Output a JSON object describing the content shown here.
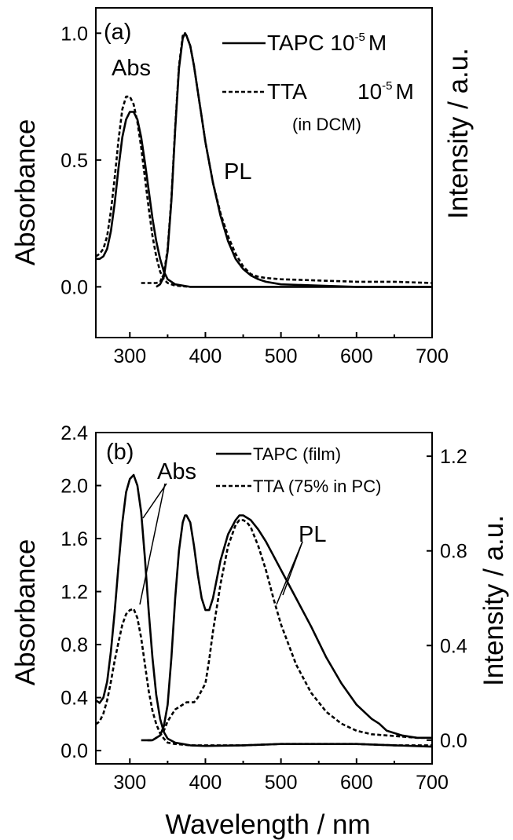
{
  "chart_data": [
    {
      "panel": "(a)",
      "type": "line",
      "xlabel": "",
      "ylabel": "Absorbance",
      "ylabel_right": "Intensity / a.u.",
      "xlim": [
        255,
        700
      ],
      "ylim": [
        -0.2,
        1.1
      ],
      "xticks": [
        "300",
        "400",
        "500",
        "600",
        "700"
      ],
      "yticks": [
        "0.0",
        "0.5",
        "1.0"
      ],
      "annotations": [
        "Abs",
        "PL"
      ],
      "legend": {
        "placement": "top-right",
        "entries": [
          {
            "name": "TAPC 10",
            "sup": "-5",
            "unit": "M",
            "style": "solid"
          },
          {
            "name": "TTA",
            "conc": "10",
            "sup": "-5",
            "unit": "M",
            "style": "dashed"
          }
        ],
        "note": "(in DCM)"
      },
      "series": [
        {
          "name": "TAPC Abs",
          "style": "solid",
          "x": [
            255,
            260,
            265,
            270,
            275,
            280,
            285,
            290,
            295,
            300,
            305,
            310,
            315,
            320,
            325,
            330,
            335,
            340,
            345,
            350,
            360,
            380,
            400,
            450,
            500,
            600,
            700
          ],
          "y": [
            0.11,
            0.11,
            0.12,
            0.15,
            0.22,
            0.33,
            0.47,
            0.59,
            0.66,
            0.69,
            0.69,
            0.66,
            0.59,
            0.49,
            0.38,
            0.27,
            0.18,
            0.11,
            0.06,
            0.03,
            0.01,
            0.0,
            0.0,
            0.0,
            0.0,
            0.0,
            0.0
          ]
        },
        {
          "name": "TTA Abs",
          "style": "dashed",
          "x": [
            255,
            260,
            265,
            270,
            275,
            280,
            285,
            290,
            295,
            300,
            305,
            310,
            315,
            320,
            325,
            330,
            335,
            340,
            345,
            350,
            360,
            380
          ],
          "y": [
            0.12,
            0.13,
            0.15,
            0.2,
            0.3,
            0.43,
            0.58,
            0.7,
            0.75,
            0.75,
            0.72,
            0.65,
            0.55,
            0.43,
            0.31,
            0.2,
            0.12,
            0.06,
            0.03,
            0.015,
            0.005,
            0.0
          ]
        },
        {
          "name": "TAPC PL",
          "style": "solid",
          "x": [
            335,
            340,
            345,
            350,
            355,
            360,
            365,
            370,
            373,
            375,
            380,
            385,
            390,
            395,
            400,
            410,
            420,
            430,
            440,
            450,
            460,
            470,
            480,
            500,
            550,
            600,
            650,
            700
          ],
          "y": [
            0.0,
            0.01,
            0.04,
            0.14,
            0.34,
            0.62,
            0.86,
            0.98,
            1.0,
            0.99,
            0.95,
            0.87,
            0.77,
            0.67,
            0.57,
            0.41,
            0.28,
            0.18,
            0.11,
            0.07,
            0.045,
            0.03,
            0.02,
            0.01,
            0.005,
            0.0,
            0.0,
            0.0
          ]
        },
        {
          "name": "TTA PL",
          "style": "dashed",
          "x": [
            315,
            325,
            335,
            340,
            345,
            350,
            355,
            360,
            365,
            370,
            373,
            375,
            380,
            385,
            390,
            395,
            400,
            410,
            420,
            430,
            440,
            450,
            460,
            470,
            480,
            500,
            550,
            600,
            650,
            700
          ],
          "y": [
            0.015,
            0.015,
            0.015,
            0.02,
            0.05,
            0.15,
            0.35,
            0.63,
            0.87,
            0.99,
            1.0,
            0.99,
            0.95,
            0.87,
            0.77,
            0.67,
            0.57,
            0.41,
            0.29,
            0.2,
            0.13,
            0.08,
            0.05,
            0.04,
            0.035,
            0.03,
            0.025,
            0.02,
            0.02,
            0.015
          ]
        }
      ]
    },
    {
      "panel": "(b)",
      "type": "line",
      "xlabel": "Wavelength / nm",
      "ylabel": "Absorbance",
      "ylabel_right": "Intensity / a.u.",
      "xlim": [
        255,
        700
      ],
      "ylim": [
        -0.1,
        2.4
      ],
      "ylim_right": [
        -0.1,
        1.3
      ],
      "xticks": [
        "300",
        "400",
        "500",
        "600",
        "700"
      ],
      "yticks": [
        "0.0",
        "0.4",
        "0.8",
        "1.2",
        "1.6",
        "2.0",
        "2.4"
      ],
      "yticks_right": [
        "0.0",
        "0.4",
        "0.8",
        "1.2"
      ],
      "annotations": [
        "Abs",
        "PL"
      ],
      "legend": {
        "placement": "top-right",
        "entries": [
          {
            "name": "TAPC (film)",
            "style": "solid"
          },
          {
            "name": "TTA (75% in PC)",
            "style": "dashed"
          }
        ]
      },
      "series": [
        {
          "name": "TAPC Abs (film)",
          "style": "solid",
          "x": [
            255,
            260,
            265,
            270,
            275,
            280,
            285,
            290,
            295,
            300,
            305,
            310,
            315,
            320,
            325,
            330,
            335,
            340,
            345,
            350,
            360,
            370,
            380,
            400,
            450,
            500,
            550,
            600,
            650,
            700
          ],
          "y": [
            0.38,
            0.36,
            0.4,
            0.52,
            0.75,
            1.05,
            1.4,
            1.72,
            1.95,
            2.05,
            2.08,
            2.0,
            1.8,
            1.45,
            1.05,
            0.7,
            0.42,
            0.24,
            0.14,
            0.09,
            0.06,
            0.05,
            0.04,
            0.035,
            0.04,
            0.05,
            0.05,
            0.05,
            0.04,
            0.03
          ]
        },
        {
          "name": "TTA Abs (75% in PC)",
          "style": "dashed",
          "x": [
            255,
            260,
            265,
            270,
            275,
            280,
            285,
            290,
            295,
            300,
            305,
            310,
            315,
            320,
            325,
            330,
            335,
            340,
            345,
            350,
            360,
            380,
            400,
            450,
            500,
            550,
            600,
            650,
            700
          ],
          "y": [
            0.2,
            0.22,
            0.28,
            0.38,
            0.52,
            0.68,
            0.82,
            0.95,
            1.03,
            1.06,
            1.07,
            1.0,
            0.85,
            0.65,
            0.45,
            0.3,
            0.2,
            0.13,
            0.09,
            0.06,
            0.05,
            0.04,
            0.04,
            0.04,
            0.05,
            0.05,
            0.05,
            0.04,
            0.04
          ]
        },
        {
          "name": "TAPC PL (film)",
          "style": "solid",
          "x": [
            320,
            330,
            340,
            345,
            350,
            355,
            360,
            365,
            370,
            373,
            375,
            380,
            385,
            390,
            395,
            400,
            405,
            410,
            415,
            420,
            430,
            440,
            445,
            450,
            455,
            460,
            470,
            480,
            490,
            500,
            520,
            540,
            560,
            580,
            600,
            620,
            630,
            640,
            660,
            680,
            700
          ],
          "y": [
            0.0,
            0.0,
            0.02,
            0.06,
            0.15,
            0.35,
            0.6,
            0.8,
            0.92,
            0.95,
            0.95,
            0.92,
            0.82,
            0.7,
            0.6,
            0.55,
            0.55,
            0.6,
            0.68,
            0.76,
            0.87,
            0.93,
            0.95,
            0.95,
            0.94,
            0.93,
            0.89,
            0.84,
            0.78,
            0.72,
            0.6,
            0.48,
            0.35,
            0.24,
            0.15,
            0.09,
            0.07,
            0.04,
            0.02,
            0.01,
            0.01
          ]
        },
        {
          "name": "TTA PL (75% in PC)",
          "style": "dashed",
          "x": [
            315,
            330,
            340,
            345,
            350,
            360,
            370,
            375,
            380,
            385,
            390,
            400,
            405,
            410,
            420,
            430,
            440,
            445,
            450,
            455,
            460,
            470,
            480,
            490,
            500,
            520,
            540,
            560,
            580,
            600,
            620,
            640,
            660,
            680,
            700
          ],
          "y": [
            0.0,
            0.0,
            0.02,
            0.04,
            0.08,
            0.13,
            0.15,
            0.16,
            0.16,
            0.16,
            0.18,
            0.24,
            0.34,
            0.46,
            0.66,
            0.82,
            0.91,
            0.93,
            0.93,
            0.92,
            0.9,
            0.82,
            0.72,
            0.6,
            0.49,
            0.32,
            0.2,
            0.12,
            0.07,
            0.04,
            0.025,
            0.02,
            0.015,
            0.01,
            0.01
          ]
        }
      ]
    }
  ]
}
